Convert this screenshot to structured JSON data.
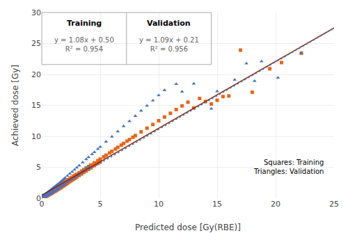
{
  "chart_data": {
    "type": "scatter",
    "xlabel": "Predicted dose [Gy(RBE)]",
    "ylabel": "Achieved dose [Gy]",
    "xlim": [
      0,
      25
    ],
    "ylim": [
      0,
      30
    ],
    "xticks": [
      0,
      5,
      10,
      15,
      20,
      25
    ],
    "yticks": [
      0,
      5,
      10,
      15,
      20,
      25,
      30
    ],
    "grid": true,
    "annotations": [
      "Training",
      "y = 1.08x + 0.50\nR² = 0.954",
      "Validation",
      "y = 1.09x + 0.21\nR² = 0.956",
      "Squares: Training\nTriangles: Validation"
    ],
    "series": [
      {
        "type": "scatter",
        "marker": "square",
        "color": "#E8651A",
        "x": [
          0.05,
          0.08,
          0.1,
          0.1,
          0.12,
          0.15,
          0.15,
          0.18,
          0.2,
          0.2,
          0.22,
          0.25,
          0.25,
          0.28,
          0.3,
          0.3,
          0.32,
          0.35,
          0.35,
          0.38,
          0.4,
          0.4,
          0.42,
          0.45,
          0.45,
          0.48,
          0.5,
          0.5,
          0.52,
          0.55,
          0.55,
          0.58,
          0.6,
          0.6,
          0.62,
          0.65,
          0.65,
          0.68,
          0.7,
          0.7,
          0.72,
          0.75,
          0.75,
          0.78,
          0.8,
          0.8,
          0.82,
          0.85,
          0.85,
          0.88,
          0.9,
          0.9,
          0.92,
          0.95,
          0.95,
          1.0,
          1.0,
          1.05,
          1.1,
          1.1,
          1.15,
          1.2,
          1.2,
          1.25,
          1.3,
          1.3,
          1.35,
          1.4,
          1.4,
          1.45,
          1.5,
          1.5,
          1.55,
          1.6,
          1.6,
          1.65,
          1.7,
          1.7,
          1.75,
          1.8,
          1.8,
          1.85,
          1.9,
          1.9,
          1.95,
          2.0,
          2.0,
          2.05,
          2.1,
          2.1,
          2.2,
          2.2,
          2.3,
          2.3,
          2.4,
          2.4,
          2.5,
          2.5,
          2.6,
          2.6,
          2.7,
          2.7,
          2.8,
          2.8,
          2.9,
          2.9,
          3.0,
          3.0,
          3.2,
          3.2,
          3.4,
          3.4,
          3.6,
          3.6,
          3.8,
          3.8,
          4.0,
          4.0,
          4.2,
          4.2,
          4.5,
          4.5,
          4.8,
          4.8,
          5.0,
          5.0,
          5.3,
          5.5,
          5.8,
          6.0,
          6.3,
          6.5,
          6.8,
          7.0,
          7.3,
          7.5,
          7.8,
          8.0,
          8.5,
          9.0,
          9.5,
          10.0,
          10.5,
          11.0,
          11.5,
          12.0,
          12.5,
          13.0,
          13.5,
          14.0,
          14.5,
          15.0,
          15.5,
          16.0,
          17.0,
          18.0,
          19.5,
          20.5,
          22.2
        ],
        "values": [
          0.08,
          0.05,
          0.12,
          0.05,
          0.15,
          0.18,
          0.1,
          0.22,
          0.25,
          0.15,
          0.28,
          0.3,
          0.2,
          0.35,
          0.38,
          0.25,
          0.4,
          0.42,
          0.3,
          0.45,
          0.5,
          0.35,
          0.52,
          0.55,
          0.4,
          0.58,
          0.62,
          0.45,
          0.65,
          0.68,
          0.5,
          0.72,
          0.75,
          0.55,
          0.78,
          0.8,
          0.62,
          0.85,
          0.88,
          0.68,
          0.92,
          0.95,
          0.72,
          1.0,
          1.02,
          0.78,
          1.05,
          1.08,
          0.82,
          1.12,
          1.15,
          0.88,
          1.18,
          1.22,
          0.95,
          1.28,
          1.0,
          1.35,
          1.42,
          1.1,
          1.48,
          1.55,
          1.2,
          1.62,
          1.68,
          1.32,
          1.75,
          1.82,
          1.45,
          1.88,
          1.95,
          1.55,
          2.02,
          2.08,
          1.68,
          2.15,
          2.22,
          1.8,
          2.28,
          2.35,
          1.92,
          2.42,
          2.48,
          2.05,
          2.55,
          2.62,
          2.18,
          2.68,
          2.75,
          2.3,
          2.88,
          2.45,
          3.0,
          2.58,
          3.12,
          2.7,
          3.25,
          2.82,
          3.38,
          2.95,
          3.5,
          3.08,
          3.62,
          3.2,
          3.75,
          3.32,
          3.88,
          3.45,
          4.12,
          3.68,
          4.38,
          3.92,
          4.62,
          4.18,
          4.88,
          4.42,
          5.12,
          4.68,
          5.38,
          4.92,
          5.72,
          5.28,
          6.08,
          5.62,
          6.32,
          5.88,
          6.68,
          6.95,
          7.32,
          7.58,
          7.95,
          8.22,
          8.58,
          8.85,
          9.22,
          9.48,
          9.85,
          10.12,
          10.72,
          11.32,
          11.92,
          12.52,
          13.12,
          13.72,
          14.32,
          14.92,
          15.52,
          14.58,
          16.12,
          15.62,
          15.22,
          15.82,
          16.42,
          16.52,
          23.92,
          17.12,
          20.92,
          21.92,
          23.42
        ]
      },
      {
        "type": "scatter",
        "marker": "triangle",
        "color": "#4472C4",
        "x": [
          0.05,
          0.1,
          0.15,
          0.2,
          0.25,
          0.3,
          0.3,
          0.35,
          0.4,
          0.4,
          0.45,
          0.5,
          0.5,
          0.55,
          0.6,
          0.6,
          0.65,
          0.7,
          0.7,
          0.75,
          0.8,
          0.8,
          0.85,
          0.9,
          0.9,
          0.95,
          1.0,
          1.0,
          1.05,
          1.1,
          1.1,
          1.15,
          1.2,
          1.2,
          1.25,
          1.3,
          1.3,
          1.35,
          1.4,
          1.4,
          1.5,
          1.5,
          1.6,
          1.6,
          1.7,
          1.7,
          1.8,
          1.8,
          1.9,
          1.9,
          2.0,
          2.0,
          2.2,
          2.2,
          2.4,
          2.4,
          2.6,
          2.6,
          2.8,
          2.8,
          3.0,
          3.0,
          3.2,
          3.2,
          3.5,
          3.5,
          3.8,
          3.8,
          4.0,
          4.0,
          4.3,
          4.5,
          4.8,
          5.0,
          5.5,
          6.0,
          6.5,
          7.0,
          7.5,
          8.0,
          8.5,
          9.0,
          9.5,
          10.0,
          10.5,
          11.5,
          12.0,
          13.0,
          14.5,
          15.0,
          16.5,
          17.5,
          18.2,
          18.8,
          20.2,
          22.2
        ],
        "values": [
          0.45,
          0.2,
          0.48,
          0.25,
          0.55,
          0.62,
          0.28,
          0.7,
          0.78,
          0.35,
          0.85,
          0.92,
          0.45,
          1.0,
          1.08,
          0.55,
          1.15,
          1.22,
          0.65,
          1.3,
          1.38,
          0.75,
          1.45,
          1.52,
          0.88,
          1.6,
          1.68,
          1.0,
          1.75,
          1.82,
          1.12,
          1.9,
          1.98,
          1.25,
          2.05,
          2.12,
          1.38,
          2.2,
          2.28,
          1.52,
          2.45,
          1.65,
          2.62,
          1.78,
          2.78,
          1.92,
          2.95,
          2.05,
          3.12,
          2.18,
          3.28,
          2.32,
          3.62,
          2.58,
          3.95,
          2.85,
          4.28,
          3.12,
          4.62,
          3.38,
          4.95,
          3.65,
          5.28,
          3.92,
          5.78,
          4.38,
          6.28,
          4.85,
          6.62,
          5.18,
          7.12,
          7.45,
          7.95,
          8.28,
          9.12,
          9.95,
          10.78,
          11.62,
          12.45,
          13.28,
          14.12,
          14.95,
          15.78,
          16.62,
          17.45,
          18.45,
          17.22,
          18.52,
          14.48,
          17.28,
          19.12,
          21.78,
          18.92,
          22.12,
          19.48,
          23.48
        ]
      },
      {
        "type": "line",
        "line_style": "solid",
        "color": "#8B2500",
        "x": [
          0,
          25
        ],
        "values": [
          0.5,
          27.5
        ]
      },
      {
        "type": "line",
        "line_style": "dotted",
        "color": "#4472C4",
        "x": [
          0,
          25
        ],
        "values": [
          0.21,
          27.46
        ]
      }
    ]
  }
}
